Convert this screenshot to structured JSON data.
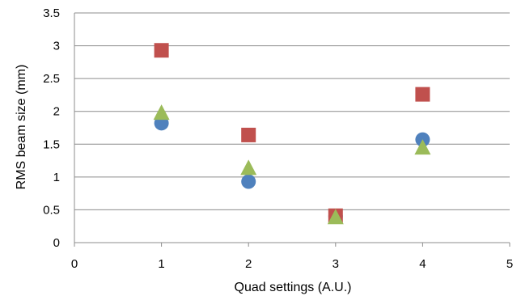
{
  "chart_data": {
    "type": "scatter",
    "title": "",
    "xlabel": "Quad settings (A.U.)",
    "ylabel": "RMS beam size (mm)",
    "xlim": [
      0,
      5
    ],
    "ylim": [
      0,
      3.5
    ],
    "x_ticks": [
      "0",
      "1",
      "2",
      "3",
      "4",
      "5"
    ],
    "y_ticks": [
      "0",
      "0.5",
      "1",
      "1.5",
      "2",
      "2.5",
      "3",
      "3.5"
    ],
    "grid": "horizontal",
    "legend": "none",
    "series": [
      {
        "marker": "circle",
        "color": "#4f81bd",
        "x": [
          1,
          2,
          3,
          4
        ],
        "values": [
          1.82,
          0.93,
          0.4,
          1.57
        ]
      },
      {
        "marker": "square",
        "color": "#c0504d",
        "x": [
          1,
          2,
          3,
          4
        ],
        "values": [
          2.93,
          1.64,
          0.41,
          2.26
        ]
      },
      {
        "marker": "triangle",
        "color": "#9bbb59",
        "x": [
          1,
          2,
          3,
          4
        ],
        "values": [
          1.96,
          1.12,
          0.37,
          1.43
        ]
      }
    ]
  }
}
